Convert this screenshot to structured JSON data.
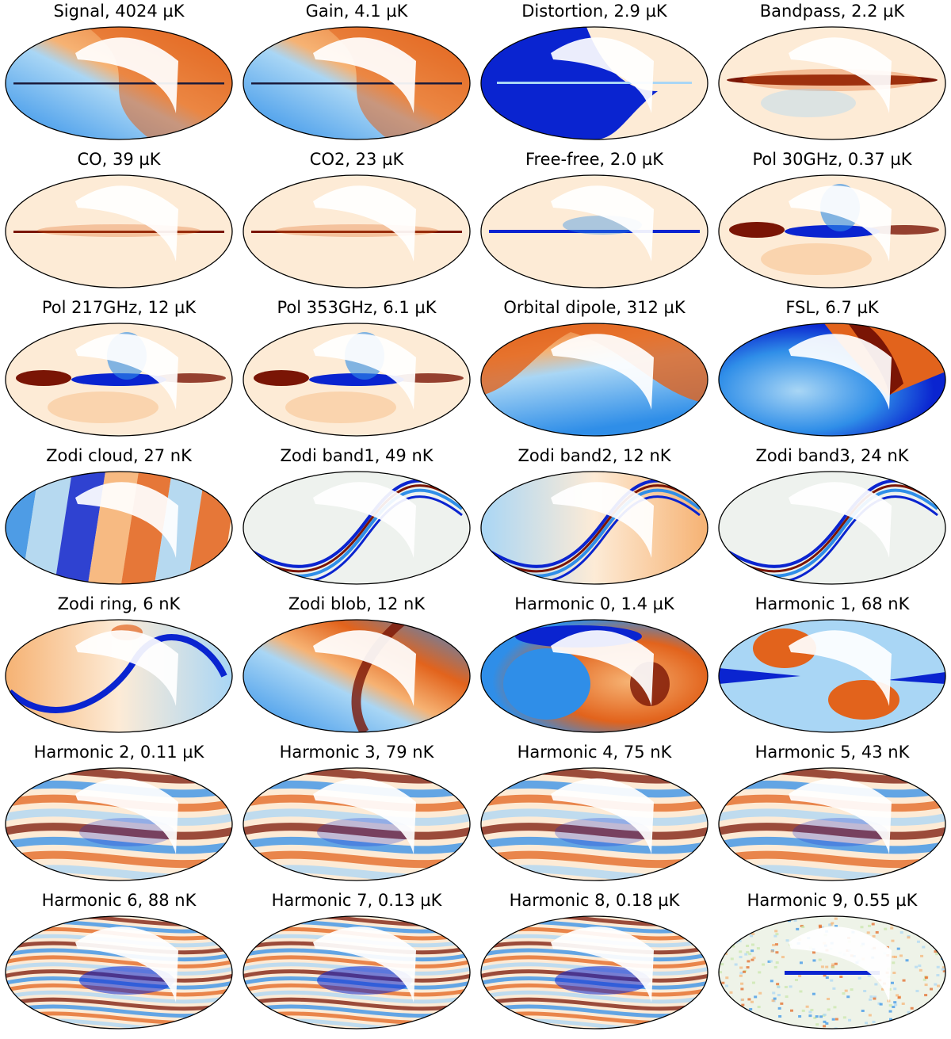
{
  "panels": [
    {
      "title": "Signal, 4024 µK",
      "pattern": "dipole",
      "palette": "diverging-orange-blue"
    },
    {
      "title": "Gain, 4.1 µK",
      "pattern": "dipole",
      "palette": "diverging-orange-blue"
    },
    {
      "title": "Distortion, 2.9 µK",
      "pattern": "distortion",
      "palette": "diverging-orange-blue"
    },
    {
      "title": "Bandpass, 2.2 µK",
      "pattern": "galactic",
      "palette": "diverging-orange-blue"
    },
    {
      "title": "CO, 39 µK",
      "pattern": "galactic-faint",
      "palette": "diverging-orange-blue"
    },
    {
      "title": "CO2, 23 µK",
      "pattern": "galactic-faint",
      "palette": "diverging-orange-blue"
    },
    {
      "title": "Free-free, 2.0 µK",
      "pattern": "galactic-blue",
      "palette": "diverging-orange-blue"
    },
    {
      "title": "Pol 30GHz, 0.37 µK",
      "pattern": "noisy-galactic",
      "palette": "diverging-orange-blue"
    },
    {
      "title": "Pol 217GHz, 12 µK",
      "pattern": "noisy-galactic",
      "palette": "diverging-orange-blue"
    },
    {
      "title": "Pol 353GHz, 6.1 µK",
      "pattern": "noisy-galactic",
      "palette": "diverging-orange-blue"
    },
    {
      "title": "Orbital dipole, 312 µK",
      "pattern": "orbital",
      "palette": "diverging-orange-blue"
    },
    {
      "title": "FSL, 6.7 µK",
      "pattern": "fsl",
      "palette": "diverging-orange-blue"
    },
    {
      "title": "Zodi cloud, 27 nK",
      "pattern": "stripes",
      "palette": "diverging-orange-blue"
    },
    {
      "title": "Zodi band1, 49 nK",
      "pattern": "band",
      "palette": "diverging-orange-blue"
    },
    {
      "title": "Zodi band2, 12 nK",
      "pattern": "band2",
      "palette": "diverging-orange-blue"
    },
    {
      "title": "Zodi band3, 24 nK",
      "pattern": "band",
      "palette": "diverging-orange-blue"
    },
    {
      "title": "Zodi ring, 6 nK",
      "pattern": "ring",
      "palette": "diverging-orange-blue"
    },
    {
      "title": "Zodi blob, 12 nK",
      "pattern": "blob",
      "palette": "diverging-orange-blue"
    },
    {
      "title": "Harmonic 0, 1.4 µK",
      "pattern": "harm0",
      "palette": "diverging-orange-blue"
    },
    {
      "title": "Harmonic 1, 68 nK",
      "pattern": "harm1",
      "palette": "diverging-orange-blue"
    },
    {
      "title": "Harmonic 2, 0.11 µK",
      "pattern": "harmonic",
      "palette": "diverging-orange-blue"
    },
    {
      "title": "Harmonic 3, 79 nK",
      "pattern": "harmonic",
      "palette": "diverging-orange-blue"
    },
    {
      "title": "Harmonic 4, 75 nK",
      "pattern": "harmonic",
      "palette": "diverging-orange-blue"
    },
    {
      "title": "Harmonic 5, 43 nK",
      "pattern": "harmonic",
      "palette": "diverging-orange-blue"
    },
    {
      "title": "Harmonic 6, 88 nK",
      "pattern": "harmonic-fine",
      "palette": "diverging-orange-blue"
    },
    {
      "title": "Harmonic 7, 0.13 µK",
      "pattern": "harmonic-fine",
      "palette": "diverging-orange-blue"
    },
    {
      "title": "Harmonic 8, 0.18 µK",
      "pattern": "harmonic-fine",
      "palette": "diverging-orange-blue"
    },
    {
      "title": "Harmonic 9, 0.55 µK",
      "pattern": "noise",
      "palette": "diverging-orange-blue"
    }
  ],
  "colors": {
    "deep_blue": "#0a24d0",
    "mid_blue": "#2f8ee8",
    "light_blue": "#a9d6f5",
    "neutral": "#fdebd6",
    "light_orange": "#f6b273",
    "mid_orange": "#e2631c",
    "deep_red": "#7a1505",
    "outline": "#000000"
  }
}
